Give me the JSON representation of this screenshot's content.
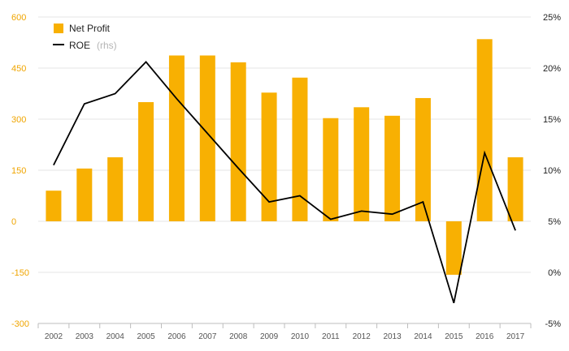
{
  "chart_data": {
    "type": "bar",
    "categories": [
      "2002",
      "2003",
      "2004",
      "2005",
      "2006",
      "2007",
      "2008",
      "2009",
      "2010",
      "2011",
      "2012",
      "2013",
      "2014",
      "2015",
      "2016",
      "2017"
    ],
    "series": [
      {
        "name": "Net Profit",
        "type": "bar",
        "axis": "left",
        "color": "#f8b002",
        "values": [
          90,
          155,
          188,
          350,
          487,
          487,
          467,
          378,
          422,
          303,
          335,
          310,
          362,
          -157,
          535,
          188
        ]
      },
      {
        "name": "ROE",
        "legend_suffix": "(rhs)",
        "type": "line",
        "axis": "right",
        "color": "#000000",
        "values": [
          10.5,
          16.5,
          17.5,
          20.6,
          17.0,
          13.6,
          10.2,
          6.9,
          7.5,
          5.2,
          6.0,
          5.7,
          6.9,
          -3.0,
          11.7,
          4.1
        ]
      }
    ],
    "ylim_left": [
      -300,
      600
    ],
    "yticks_left": [
      -300,
      -150,
      0,
      150,
      300,
      450,
      600
    ],
    "ylim_right": [
      -5,
      25
    ],
    "yticks_right": [
      "-5%",
      "0%",
      "5%",
      "10%",
      "15%",
      "20%",
      "25%"
    ],
    "grid": true,
    "legend_position": "top-left",
    "title": "",
    "xlabel": "",
    "ylabel": ""
  }
}
